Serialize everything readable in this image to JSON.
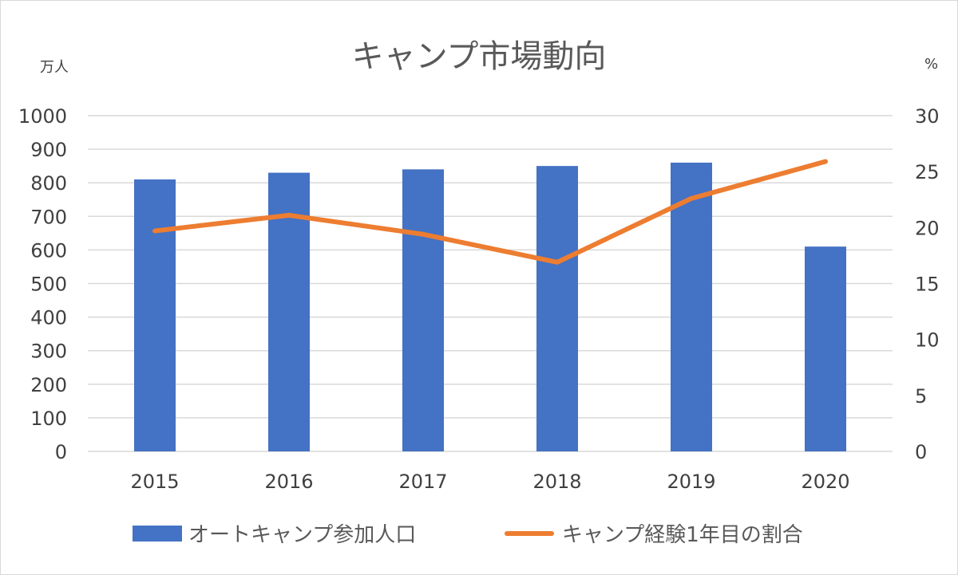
{
  "chart_data": {
    "type": "bar",
    "title": "キャンプ市場動向",
    "categories": [
      "2015",
      "2016",
      "2017",
      "2018",
      "2019",
      "2020"
    ],
    "y_left": {
      "unit": "万人",
      "ylim": [
        0,
        1000
      ],
      "ticks": [
        0,
        100,
        200,
        300,
        400,
        500,
        600,
        700,
        800,
        900,
        1000
      ]
    },
    "y_right": {
      "unit": "%",
      "ylim": [
        0,
        30
      ],
      "ticks": [
        0,
        5,
        10,
        15,
        20,
        25,
        30
      ]
    },
    "series": [
      {
        "name": "オートキャンプ参加人口",
        "type": "bar",
        "axis": "left",
        "color": "#4472C4",
        "values": [
          810,
          830,
          840,
          850,
          860,
          610
        ]
      },
      {
        "name": "キャンプ経験1年目の割合",
        "type": "line",
        "axis": "right",
        "color": "#ED7D31",
        "values": [
          19.7,
          21.1,
          19.4,
          16.9,
          22.6,
          25.9
        ]
      }
    ],
    "grid": true,
    "legend_position": "bottom"
  }
}
